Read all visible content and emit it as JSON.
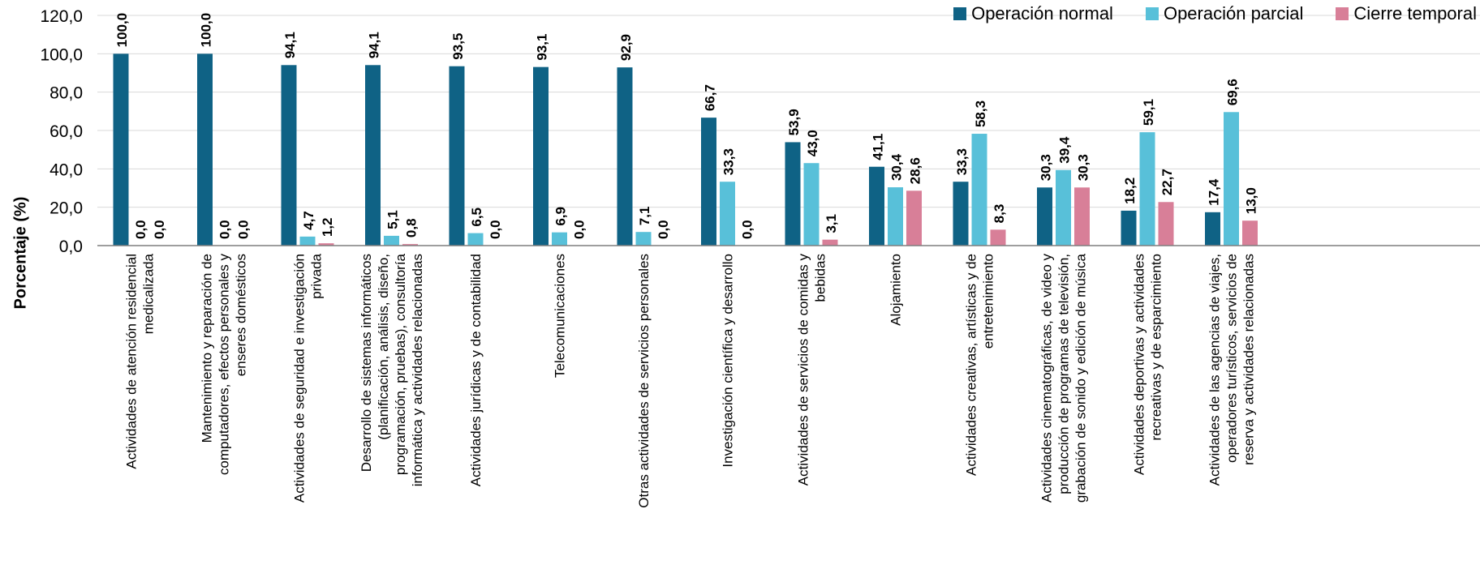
{
  "legend": {
    "normal": "Operación normal",
    "parcial": "Operación parcial",
    "cierre": "Cierre temporal"
  },
  "colors": {
    "normal": "#0f6285",
    "parcial": "#58c0d9",
    "cierre": "#d87f98",
    "grid": "#d9d9d9",
    "axis": "#7f7f7f"
  },
  "chart_data": {
    "type": "bar",
    "title": "",
    "xlabel": "",
    "ylabel": "Porcentaje (%)",
    "ylim": [
      0,
      120
    ],
    "yticks": [
      "0,0",
      "20,0",
      "40,0",
      "60,0",
      "80,0",
      "100,0",
      "120,0"
    ],
    "grid": true,
    "legend_position": "top-right",
    "categories": [
      [
        "Actividades de atención residencial",
        "medicalizada"
      ],
      [
        "Mantenimiento y reparación de",
        "computadores, efectos personales y",
        "enseres domésticos"
      ],
      [
        "Actividades de seguridad e investigación",
        "privada"
      ],
      [
        "Desarrollo de sistemas informáticos",
        "(planificación, análisis, diseño,",
        "programación, pruebas), consultoría",
        "informática y actividades relacionadas"
      ],
      [
        "Actividades jurídicas y de contabilidad"
      ],
      [
        "Telecomunicaciones"
      ],
      [
        "Otras actividades de servicios personales"
      ],
      [
        "Investigación científica y desarrollo"
      ],
      [
        "Actividades de servicios de comidas y",
        "bebidas"
      ],
      [
        "Alojamiento"
      ],
      [
        "Actividades creativas, artísticas y de",
        "entretenimiento"
      ],
      [
        "Actividades cinematográficas, de video y",
        "producción de programas de televisión,",
        "grabación de sonido y edición de música"
      ],
      [
        "Actividades deportivas y actividades",
        "recreativas y de esparcimiento"
      ],
      [
        "Actividades de las agencias de viajes,",
        "operadores turísticos, servicios de",
        "reserva y actividades relacionadas"
      ]
    ],
    "series": [
      {
        "name": "Operación normal",
        "values": [
          100.0,
          100.0,
          94.1,
          94.1,
          93.5,
          93.1,
          92.9,
          66.7,
          53.9,
          41.1,
          33.3,
          30.3,
          18.2,
          17.4
        ],
        "labels": [
          "100,0",
          "100,0",
          "94,1",
          "94,1",
          "93,5",
          "93,1",
          "92,9",
          "66,7",
          "53,9",
          "41,1",
          "33,3",
          "30,3",
          "18,2",
          "17,4"
        ]
      },
      {
        "name": "Operación parcial",
        "values": [
          0.0,
          0.0,
          4.7,
          5.1,
          6.5,
          6.9,
          7.1,
          33.3,
          43.0,
          30.4,
          58.3,
          39.4,
          59.1,
          69.6
        ],
        "labels": [
          "0,0",
          "0,0",
          "4,7",
          "5,1",
          "6,5",
          "6,9",
          "7,1",
          "33,3",
          "43,0",
          "30,4",
          "58,3",
          "39,4",
          "59,1",
          "69,6"
        ]
      },
      {
        "name": "Cierre temporal",
        "values": [
          0.0,
          0.0,
          1.2,
          0.8,
          0.0,
          0.0,
          0.0,
          0.0,
          3.1,
          28.6,
          8.3,
          30.3,
          22.7,
          13.0
        ],
        "labels": [
          "0,0",
          "0,0",
          "1,2",
          "0,8",
          "0,0",
          "0,0",
          "0,0",
          "0,0",
          "3,1",
          "28,6",
          "8,3",
          "30,3",
          "22,7",
          "13,0"
        ]
      }
    ]
  }
}
